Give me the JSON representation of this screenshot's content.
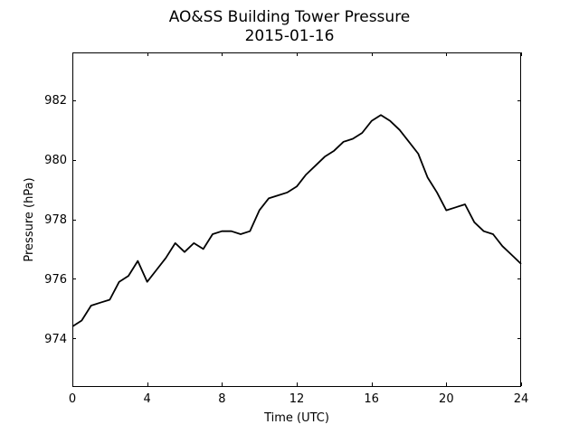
{
  "chart_data": {
    "type": "line",
    "title": "AO&SS Building Tower Pressure",
    "subtitle": "2015-01-16",
    "xlabel": "Time (UTC)",
    "ylabel": "Pressure (hPa)",
    "xlim": [
      0,
      24
    ],
    "ylim": [
      972.4,
      983.6
    ],
    "xticks": [
      0,
      4,
      8,
      12,
      16,
      20,
      24
    ],
    "xtick_labels": [
      "0",
      "4",
      "8",
      "12",
      "16",
      "20",
      "24"
    ],
    "yticks": [
      974,
      976,
      978,
      980,
      982
    ],
    "ytick_labels": [
      "974",
      "976",
      "978",
      "980",
      "982"
    ],
    "grid": false,
    "series": [
      {
        "color": "#000000",
        "x": [
          0,
          0.5,
          1,
          1.5,
          2,
          2.5,
          3,
          3.5,
          4,
          4.5,
          5,
          5.5,
          6,
          6.5,
          7,
          7.5,
          8,
          8.5,
          9,
          9.5,
          10,
          10.5,
          11,
          11.5,
          12,
          12.5,
          13,
          13.5,
          14,
          14.5,
          15,
          15.5,
          16,
          16.5,
          17,
          17.5,
          18,
          18.5,
          19,
          19.5,
          20,
          20.5,
          21,
          21.5,
          22,
          22.5,
          23,
          23.5,
          24
        ],
        "y": [
          974.4,
          974.6,
          975.1,
          975.2,
          975.3,
          975.9,
          976.1,
          976.6,
          975.9,
          976.3,
          976.7,
          977.2,
          976.9,
          977.2,
          977.0,
          977.5,
          977.6,
          977.6,
          977.5,
          977.6,
          978.3,
          978.7,
          978.8,
          978.9,
          979.1,
          979.5,
          979.8,
          980.1,
          980.3,
          980.6,
          980.7,
          980.9,
          981.3,
          981.5,
          981.3,
          981.0,
          980.6,
          980.2,
          979.4,
          978.9,
          978.3,
          978.4,
          978.5,
          977.9,
          977.6,
          977.5,
          977.1,
          976.8,
          976.5
        ]
      }
    ]
  }
}
